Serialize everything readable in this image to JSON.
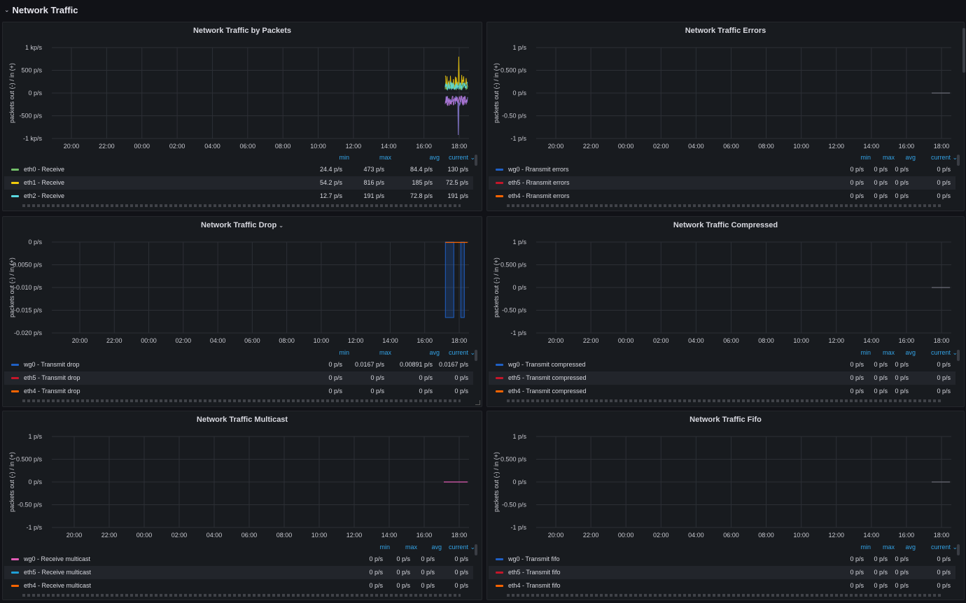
{
  "row": {
    "title": "Network Traffic",
    "chevron_icon": "chevron-down-icon"
  },
  "colors": {
    "grid": "#2c2f35",
    "axis_text": "#c7c8cf",
    "accent": "#33a2e5"
  },
  "panels": [
    {
      "title": "Network Traffic by Packets",
      "has_dropdown": false,
      "ylabel": "packets out (-) / in (+)",
      "y_ticks": [
        "1 kp/s",
        "500 p/s",
        "0 p/s",
        "-500 p/s",
        "-1 kp/s"
      ],
      "x_ticks": [
        "20:00",
        "22:00",
        "00:00",
        "02:00",
        "04:00",
        "06:00",
        "08:00",
        "10:00",
        "12:00",
        "14:00",
        "16:00",
        "18:00"
      ],
      "columns": [
        "min",
        "max",
        "avg",
        "current"
      ],
      "sorted_column": "current",
      "legend": [
        {
          "name": "eth0 - Receive",
          "color": "#73bf69",
          "min": "24.4 p/s",
          "max": "473 p/s",
          "avg": "84.4 p/s",
          "current": "130 p/s"
        },
        {
          "name": "eth1 - Receive",
          "color": "#f2cc0c",
          "min": "54.2 p/s",
          "max": "816 p/s",
          "avg": "185 p/s",
          "current": "72.5 p/s"
        },
        {
          "name": "eth2 - Receive",
          "color": "#5ad8e0",
          "min": "12.7 p/s",
          "max": "191 p/s",
          "avg": "72.8 p/s",
          "current": "191 p/s"
        }
      ]
    },
    {
      "title": "Network Traffic Errors",
      "has_dropdown": false,
      "ylabel": "packets out (-) / in (+)",
      "y_ticks": [
        "1 p/s",
        "0.500 p/s",
        "0 p/s",
        "-0.50 p/s",
        "-1 p/s"
      ],
      "x_ticks": [
        "20:00",
        "22:00",
        "00:00",
        "02:00",
        "04:00",
        "06:00",
        "08:00",
        "10:00",
        "12:00",
        "14:00",
        "16:00",
        "18:00"
      ],
      "columns": [
        "min",
        "max",
        "avg",
        "current"
      ],
      "sorted_column": "current",
      "legend": [
        {
          "name": "wg0 - Rransmit errors",
          "color": "#1f60c4",
          "min": "0 p/s",
          "max": "0 p/s",
          "avg": "0 p/s",
          "current": "0 p/s"
        },
        {
          "name": "eth5 - Rransmit errors",
          "color": "#c4162a",
          "min": "0 p/s",
          "max": "0 p/s",
          "avg": "0 p/s",
          "current": "0 p/s"
        },
        {
          "name": "eth4 - Rransmit errors",
          "color": "#fa6400",
          "min": "0 p/s",
          "max": "0 p/s",
          "avg": "0 p/s",
          "current": "0 p/s"
        }
      ]
    },
    {
      "title": "Network Traffic Drop",
      "has_dropdown": true,
      "ylabel": "packets out (-) / in (+)",
      "y_ticks": [
        "0 p/s",
        "-0.0050 p/s",
        "-0.010 p/s",
        "-0.015 p/s",
        "-0.020 p/s"
      ],
      "x_ticks": [
        "20:00",
        "22:00",
        "00:00",
        "02:00",
        "04:00",
        "06:00",
        "08:00",
        "10:00",
        "12:00",
        "14:00",
        "16:00",
        "18:00"
      ],
      "columns": [
        "min",
        "max",
        "avg",
        "current"
      ],
      "sorted_column": "current",
      "legend": [
        {
          "name": "wg0 - Transmit drop",
          "color": "#1f60c4",
          "min": "0 p/s",
          "max": "0.0167 p/s",
          "avg": "0.00891 p/s",
          "current": "0.0167 p/s"
        },
        {
          "name": "eth5 - Transmit drop",
          "color": "#c4162a",
          "min": "0 p/s",
          "max": "0 p/s",
          "avg": "0 p/s",
          "current": "0 p/s"
        },
        {
          "name": "eth4 - Transmit drop",
          "color": "#fa6400",
          "min": "0 p/s",
          "max": "0 p/s",
          "avg": "0 p/s",
          "current": "0 p/s"
        }
      ]
    },
    {
      "title": "Network Traffic Compressed",
      "has_dropdown": false,
      "ylabel": "packets out (-) / in (+)",
      "y_ticks": [
        "1 p/s",
        "0.500 p/s",
        "0 p/s",
        "-0.50 p/s",
        "-1 p/s"
      ],
      "x_ticks": [
        "20:00",
        "22:00",
        "00:00",
        "02:00",
        "04:00",
        "06:00",
        "08:00",
        "10:00",
        "12:00",
        "14:00",
        "16:00",
        "18:00"
      ],
      "columns": [
        "min",
        "max",
        "avg",
        "current"
      ],
      "sorted_column": "current",
      "legend": [
        {
          "name": "wg0 - Transmit compressed",
          "color": "#1f60c4",
          "min": "0 p/s",
          "max": "0 p/s",
          "avg": "0 p/s",
          "current": "0 p/s"
        },
        {
          "name": "eth5 - Transmit compressed",
          "color": "#c4162a",
          "min": "0 p/s",
          "max": "0 p/s",
          "avg": "0 p/s",
          "current": "0 p/s"
        },
        {
          "name": "eth4 - Transmit compressed",
          "color": "#fa6400",
          "min": "0 p/s",
          "max": "0 p/s",
          "avg": "0 p/s",
          "current": "0 p/s"
        }
      ]
    },
    {
      "title": "Network Traffic Multicast",
      "has_dropdown": false,
      "ylabel": "packets out (-) / in (+)",
      "y_ticks": [
        "1 p/s",
        "0.500 p/s",
        "0 p/s",
        "-0.50 p/s",
        "-1 p/s"
      ],
      "x_ticks": [
        "20:00",
        "22:00",
        "00:00",
        "02:00",
        "04:00",
        "06:00",
        "08:00",
        "10:00",
        "12:00",
        "14:00",
        "16:00",
        "18:00"
      ],
      "columns": [
        "min",
        "max",
        "avg",
        "current"
      ],
      "sorted_column": "current",
      "legend": [
        {
          "name": "wg0 - Receive multicast",
          "color": "#e05cb5",
          "min": "0 p/s",
          "max": "0 p/s",
          "avg": "0 p/s",
          "current": "0 p/s"
        },
        {
          "name": "eth5 - Receive multicast",
          "color": "#1f9fd6",
          "min": "0 p/s",
          "max": "0 p/s",
          "avg": "0 p/s",
          "current": "0 p/s"
        },
        {
          "name": "eth4 - Receive multicast",
          "color": "#fa6400",
          "min": "0 p/s",
          "max": "0 p/s",
          "avg": "0 p/s",
          "current": "0 p/s"
        }
      ]
    },
    {
      "title": "Network Traffic Fifo",
      "has_dropdown": false,
      "ylabel": "packets out (-) / in (+)",
      "y_ticks": [
        "1 p/s",
        "0.500 p/s",
        "0 p/s",
        "-0.50 p/s",
        "-1 p/s"
      ],
      "x_ticks": [
        "20:00",
        "22:00",
        "00:00",
        "02:00",
        "04:00",
        "06:00",
        "08:00",
        "10:00",
        "12:00",
        "14:00",
        "16:00",
        "18:00"
      ],
      "columns": [
        "min",
        "max",
        "avg",
        "current"
      ],
      "sorted_column": "current",
      "legend": [
        {
          "name": "wg0 - Transmit fifo",
          "color": "#1f60c4",
          "min": "0 p/s",
          "max": "0 p/s",
          "avg": "0 p/s",
          "current": "0 p/s"
        },
        {
          "name": "eth5 - Transmit fifo",
          "color": "#c4162a",
          "min": "0 p/s",
          "max": "0 p/s",
          "avg": "0 p/s",
          "current": "0 p/s"
        },
        {
          "name": "eth4 - Transmit fifo",
          "color": "#fa6400",
          "min": "0 p/s",
          "max": "0 p/s",
          "avg": "0 p/s",
          "current": "0 p/s"
        }
      ]
    }
  ]
}
